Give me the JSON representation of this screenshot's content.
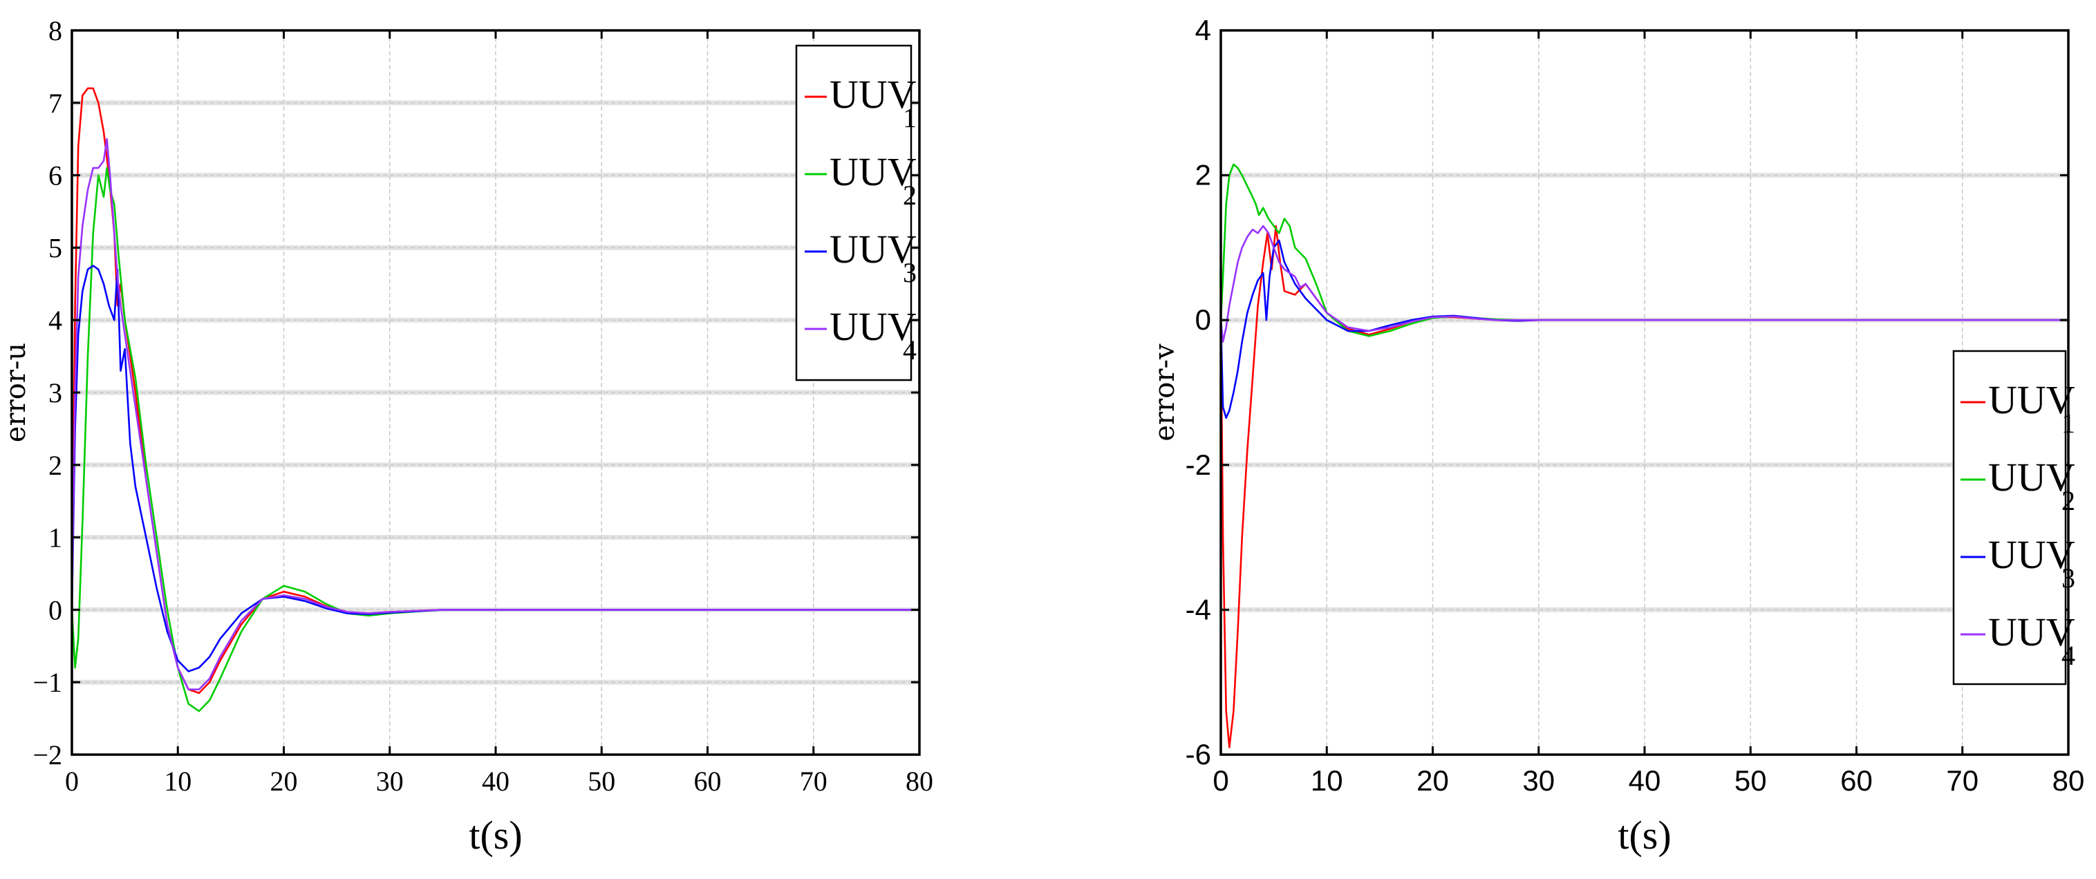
{
  "chart_data": [
    {
      "type": "line",
      "xlabel": "t(s)",
      "ylabel": "error-u",
      "xlim": [
        0,
        80
      ],
      "ylim": [
        -2,
        8
      ],
      "xticks": [
        "0",
        "10",
        "20",
        "30",
        "40",
        "50",
        "60",
        "70",
        "80"
      ],
      "yticks": [
        "−2",
        "−1",
        "0",
        "1",
        "2",
        "3",
        "4",
        "5",
        "6",
        "7",
        "8"
      ],
      "legend_position": "top-right",
      "series": [
        {
          "name": "UUV",
          "sub": "1",
          "color": "#ff0000",
          "x": [
            0,
            0.3,
            0.6,
            1.0,
            1.5,
            2.0,
            2.5,
            3.0,
            3.5,
            4.0,
            4.3,
            4.6,
            5.0,
            5.5,
            6.0,
            7.0,
            8.0,
            9.0,
            10.0,
            11.0,
            12.0,
            13.0,
            14.0,
            16.0,
            18.0,
            20.0,
            22.0,
            24.0,
            26.0,
            28.0,
            30.0,
            35.0,
            40.0,
            50.0,
            60.0,
            80.0
          ],
          "y": [
            0,
            4.2,
            6.4,
            7.1,
            7.2,
            7.2,
            7.0,
            6.6,
            6.0,
            5.2,
            4.2,
            4.5,
            4.0,
            3.5,
            3.0,
            1.8,
            0.8,
            -0.2,
            -0.8,
            -1.1,
            -1.15,
            -1.0,
            -0.7,
            -0.2,
            0.15,
            0.25,
            0.18,
            0.05,
            -0.03,
            -0.05,
            -0.03,
            0.0,
            0.0,
            0.0,
            0.0,
            0.0
          ]
        },
        {
          "name": "UUV",
          "sub": "2",
          "color": "#00cc00",
          "x": [
            0,
            0.3,
            0.6,
            1.0,
            1.5,
            2.0,
            2.5,
            3.0,
            3.3,
            3.6,
            4.0,
            4.4,
            5.0,
            6.0,
            7.0,
            8.0,
            9.0,
            10.0,
            11.0,
            12.0,
            13.0,
            14.0,
            16.0,
            18.0,
            20.0,
            22.0,
            24.0,
            26.0,
            28.0,
            30.0,
            35.0,
            40.0,
            50.0,
            60.0,
            80.0
          ],
          "y": [
            0,
            -0.8,
            -0.4,
            1.2,
            3.5,
            5.2,
            6.0,
            5.7,
            6.1,
            5.8,
            5.6,
            4.9,
            4.0,
            3.2,
            2.0,
            1.0,
            0.0,
            -0.8,
            -1.3,
            -1.4,
            -1.25,
            -0.95,
            -0.3,
            0.15,
            0.33,
            0.25,
            0.08,
            -0.05,
            -0.08,
            -0.05,
            0.0,
            0.0,
            0.0,
            0.0,
            0.0
          ]
        },
        {
          "name": "UUV",
          "sub": "3",
          "color": "#0000ff",
          "x": [
            0,
            0.3,
            0.6,
            1.0,
            1.5,
            2.0,
            2.5,
            3.0,
            3.5,
            4.0,
            4.3,
            4.6,
            5.0,
            5.5,
            6.0,
            7.0,
            8.0,
            9.0,
            10.0,
            11.0,
            12.0,
            13.0,
            14.0,
            16.0,
            18.0,
            20.0,
            22.0,
            24.0,
            26.0,
            28.0,
            30.0,
            35.0,
            40.0,
            50.0,
            60.0,
            80.0
          ],
          "y": [
            0,
            2.5,
            3.8,
            4.4,
            4.7,
            4.75,
            4.7,
            4.5,
            4.2,
            4.0,
            4.7,
            3.3,
            3.6,
            2.3,
            1.7,
            1.0,
            0.3,
            -0.3,
            -0.7,
            -0.85,
            -0.8,
            -0.65,
            -0.4,
            -0.05,
            0.15,
            0.18,
            0.12,
            0.02,
            -0.05,
            -0.06,
            -0.04,
            0.0,
            0.0,
            0.0,
            0.0,
            0.0
          ]
        },
        {
          "name": "UUV",
          "sub": "4",
          "color": "#9933ff",
          "x": [
            0,
            0.3,
            0.6,
            1.0,
            1.5,
            2.0,
            2.5,
            3.0,
            3.3,
            3.6,
            4.0,
            4.3,
            4.6,
            5.0,
            6.0,
            7.0,
            8.0,
            9.0,
            10.0,
            11.0,
            12.0,
            13.0,
            14.0,
            16.0,
            18.0,
            20.0,
            22.0,
            24.0,
            26.0,
            28.0,
            30.0,
            35.0,
            40.0,
            50.0,
            60.0,
            80.0
          ],
          "y": [
            0,
            3.0,
            4.6,
            5.3,
            5.8,
            6.1,
            6.1,
            6.2,
            6.5,
            6.0,
            5.2,
            4.6,
            4.2,
            3.8,
            2.8,
            1.8,
            0.8,
            -0.2,
            -0.8,
            -1.1,
            -1.1,
            -0.95,
            -0.65,
            -0.15,
            0.15,
            0.2,
            0.15,
            0.04,
            -0.03,
            -0.05,
            -0.03,
            0.0,
            0.0,
            0.0,
            0.0,
            0.0
          ]
        }
      ]
    },
    {
      "type": "line",
      "xlabel": "t(s)",
      "ylabel": "error-v",
      "xlim": [
        0,
        80
      ],
      "ylim": [
        -6,
        4
      ],
      "xticks": [
        "0",
        "10",
        "20",
        "30",
        "40",
        "50",
        "60",
        "70",
        "80"
      ],
      "yticks": [
        "-6",
        "-4",
        "-2",
        "0",
        "2",
        "4"
      ],
      "legend_position": "bottom-right",
      "series": [
        {
          "name": "UUV",
          "sub": "1",
          "color": "#ff0000",
          "x": [
            0,
            0.2,
            0.5,
            0.8,
            1.2,
            1.6,
            2.0,
            2.5,
            3.0,
            3.5,
            4.0,
            4.4,
            4.8,
            5.2,
            5.6,
            6.0,
            7.0,
            8.0,
            9.0,
            10.0,
            12.0,
            14.0,
            16.0,
            18.0,
            20.0,
            22.0,
            24.0,
            26.0,
            28.0,
            30.0,
            40.0,
            80.0
          ],
          "y": [
            0,
            -3.0,
            -5.4,
            -5.9,
            -5.4,
            -4.3,
            -3.0,
            -1.8,
            -0.8,
            0.2,
            0.8,
            1.2,
            0.7,
            1.3,
            0.8,
            0.4,
            0.35,
            0.5,
            0.3,
            0.1,
            -0.12,
            -0.2,
            -0.12,
            -0.02,
            0.04,
            0.04,
            0.02,
            0.0,
            -0.01,
            0.0,
            0.0,
            0.0
          ]
        },
        {
          "name": "UUV",
          "sub": "2",
          "color": "#00cc00",
          "x": [
            0,
            0.2,
            0.5,
            0.8,
            1.2,
            1.6,
            2.0,
            2.5,
            3.0,
            3.3,
            3.6,
            4.0,
            4.5,
            5.0,
            5.5,
            6.0,
            6.5,
            7.0,
            8.0,
            9.0,
            10.0,
            12.0,
            14.0,
            16.0,
            18.0,
            20.0,
            22.0,
            24.0,
            26.0,
            28.0,
            30.0,
            40.0,
            80.0
          ],
          "y": [
            0,
            0.6,
            1.6,
            2.0,
            2.15,
            2.1,
            2.0,
            1.85,
            1.7,
            1.6,
            1.45,
            1.55,
            1.4,
            1.3,
            1.2,
            1.4,
            1.3,
            1.0,
            0.85,
            0.5,
            0.1,
            -0.15,
            -0.22,
            -0.15,
            -0.05,
            0.03,
            0.05,
            0.03,
            0.01,
            0.0,
            0.0,
            0.0,
            0.0
          ]
        },
        {
          "name": "UUV",
          "sub": "3",
          "color": "#0000ff",
          "x": [
            0,
            0.2,
            0.5,
            0.8,
            1.2,
            1.6,
            2.0,
            2.5,
            3.0,
            3.5,
            4.0,
            4.3,
            4.6,
            5.0,
            5.5,
            6.0,
            7.0,
            8.0,
            9.0,
            10.0,
            12.0,
            14.0,
            16.0,
            18.0,
            20.0,
            22.0,
            24.0,
            26.0,
            28.0,
            30.0,
            40.0,
            80.0
          ],
          "y": [
            0,
            -1.2,
            -1.35,
            -1.25,
            -1.0,
            -0.7,
            -0.3,
            0.1,
            0.35,
            0.55,
            0.65,
            0.0,
            0.6,
            1.0,
            1.1,
            0.8,
            0.5,
            0.3,
            0.15,
            0.0,
            -0.15,
            -0.15,
            -0.07,
            0.0,
            0.05,
            0.06,
            0.03,
            0.0,
            -0.01,
            0.0,
            0.0,
            0.0
          ]
        },
        {
          "name": "UUV",
          "sub": "4",
          "color": "#9933ff",
          "x": [
            0,
            0.2,
            0.5,
            0.8,
            1.2,
            1.6,
            2.0,
            2.5,
            3.0,
            3.5,
            4.0,
            4.5,
            5.0,
            5.5,
            6.0,
            7.0,
            7.5,
            8.0,
            9.0,
            10.0,
            12.0,
            14.0,
            16.0,
            18.0,
            20.0,
            22.0,
            24.0,
            26.0,
            28.0,
            30.0,
            40.0,
            80.0
          ],
          "y": [
            0,
            -0.3,
            -0.1,
            0.2,
            0.5,
            0.8,
            1.0,
            1.15,
            1.25,
            1.2,
            1.3,
            1.2,
            1.0,
            0.8,
            0.7,
            0.6,
            0.45,
            0.5,
            0.3,
            0.1,
            -0.1,
            -0.15,
            -0.1,
            -0.02,
            0.04,
            0.05,
            0.02,
            0.0,
            0.0,
            0.0,
            0.0,
            0.0
          ]
        }
      ]
    }
  ]
}
